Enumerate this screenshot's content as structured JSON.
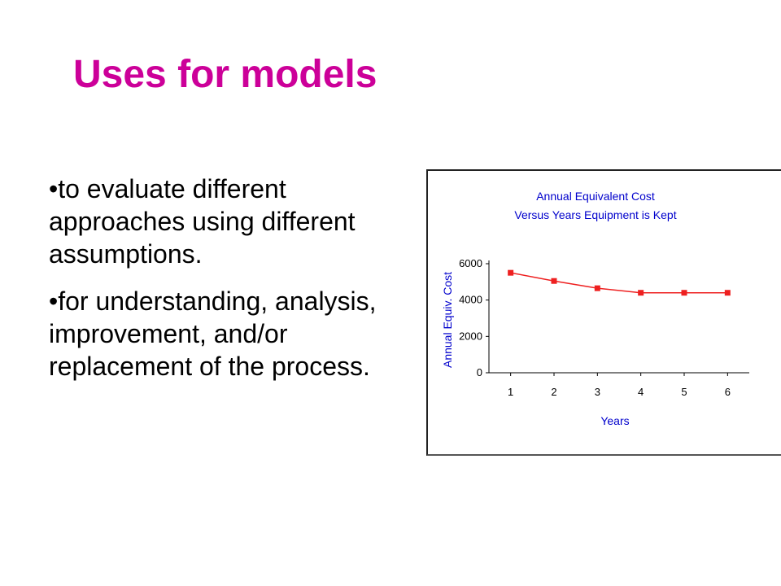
{
  "slide": {
    "title": "Uses for models",
    "bullets": [
      "•to evaluate different approaches using different assumptions.",
      "•for understanding, analysis, improvement, and/or replacement of the process."
    ]
  },
  "colors": {
    "title": "#cc0099",
    "chart_text": "#0000cc",
    "series": "#ee2020"
  },
  "chart_data": {
    "type": "line",
    "title": "Annual Equivalent Cost",
    "subtitle": "Versus Years Equipment is Kept",
    "xlabel": "Years",
    "ylabel": "Annual Equiv. Cost",
    "x": [
      1,
      2,
      3,
      4,
      5,
      6
    ],
    "series": [
      {
        "values": [
          5500,
          5050,
          4650,
          4400,
          4400,
          4400
        ]
      }
    ],
    "ylim": [
      0,
      6000
    ],
    "yticks": [
      0,
      2000,
      4000,
      6000
    ],
    "xticks": [
      1,
      2,
      3,
      4,
      5,
      6
    ],
    "grid": false,
    "legend": "none"
  }
}
